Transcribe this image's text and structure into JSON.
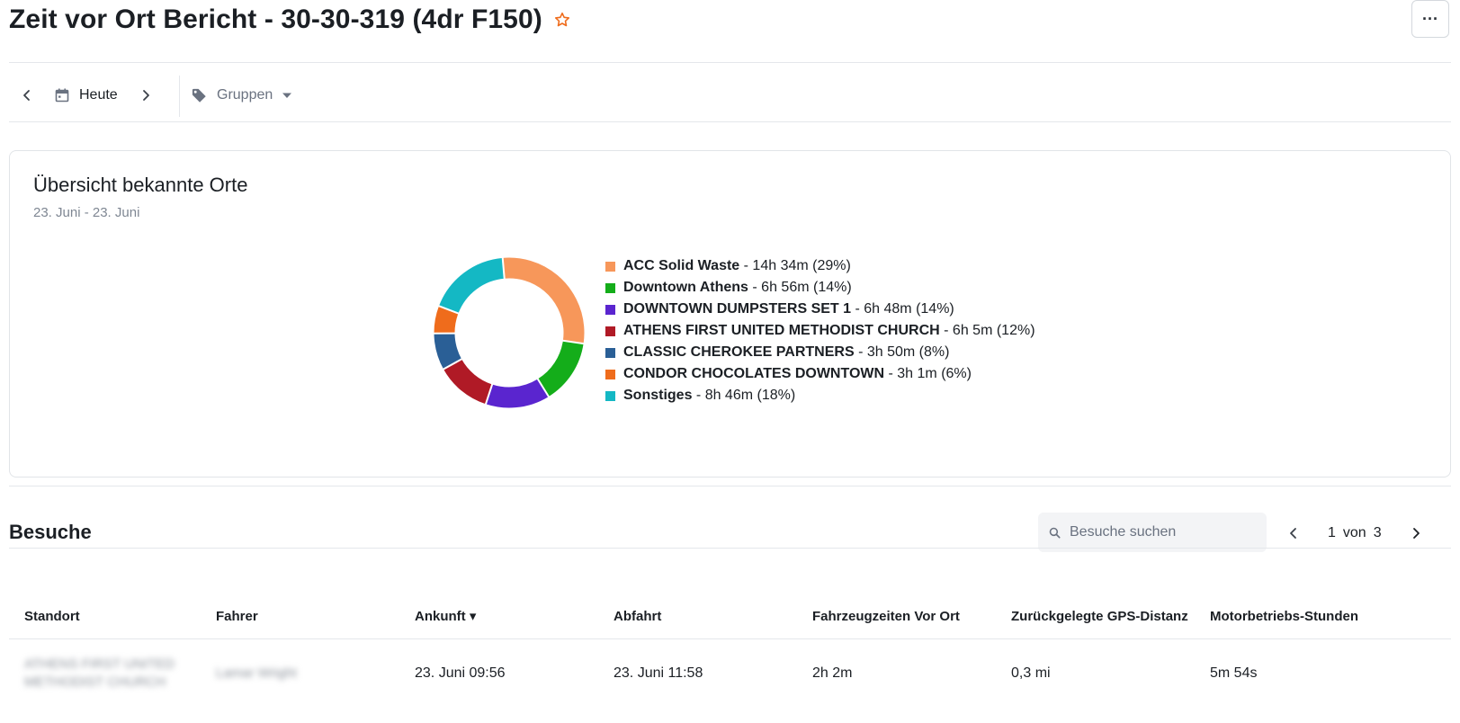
{
  "header": {
    "title": "Zeit vor Ort Bericht - 30-30-319 (4dr F150)",
    "favorite_icon": "star-outline-icon",
    "more_label": "···"
  },
  "toolbar": {
    "date_label": "Heute",
    "groups_label": "Gruppen"
  },
  "overview": {
    "title": "Übersicht bekannte Orte",
    "date_range": "23. Juni - 23. Juni"
  },
  "chart_data": {
    "type": "pie",
    "donut": true,
    "legend_position": "right",
    "slices": [
      {
        "name": "ACC Solid Waste",
        "label": " - 14h 34m (29%)",
        "value": 29,
        "color": "#f7975a"
      },
      {
        "name": "Downtown Athens",
        "label": " - 6h 56m (14%)",
        "value": 14,
        "color": "#14ad1a"
      },
      {
        "name": "DOWNTOWN DUMPSTERS SET 1",
        "label": " - 6h 48m (14%)",
        "value": 14,
        "color": "#5a25cf"
      },
      {
        "name": "ATHENS FIRST UNITED METHODIST CHURCH",
        "label": " - 6h 5m (12%)",
        "value": 12,
        "color": "#b01a26"
      },
      {
        "name": "CLASSIC CHEROKEE PARTNERS",
        "label": " - 3h 50m (8%)",
        "value": 8,
        "color": "#2a5f96"
      },
      {
        "name": "CONDOR CHOCOLATES DOWNTOWN",
        "label": " - 3h 1m (6%)",
        "value": 6,
        "color": "#ef6c1c"
      },
      {
        "name": "Sonstiges",
        "label": " - 8h 46m (18%)",
        "value": 18,
        "color": "#14b8c4"
      }
    ]
  },
  "visits": {
    "title": "Besuche",
    "search_placeholder": "Besuche suchen",
    "pager": {
      "current": "1",
      "of_label": "von",
      "total": "3"
    },
    "columns": [
      "Standort",
      "Fahrer",
      "Ankunft ▾",
      "Abfahrt",
      "Fahrzeugzeiten Vor Ort",
      "Zurückgelegte GPS-Distanz",
      "Motorbetriebs-Stunden"
    ],
    "rows": [
      {
        "location": "ATHENS FIRST UNITED METHODIST CHURCH",
        "driver": "Lamar Wright",
        "arrival": "23. Juni 09:56",
        "departure": "23. Juni 11:58",
        "time_on_site": "2h 2m",
        "gps_distance": "0,3 mi",
        "engine_hours": "5m 54s"
      }
    ]
  }
}
